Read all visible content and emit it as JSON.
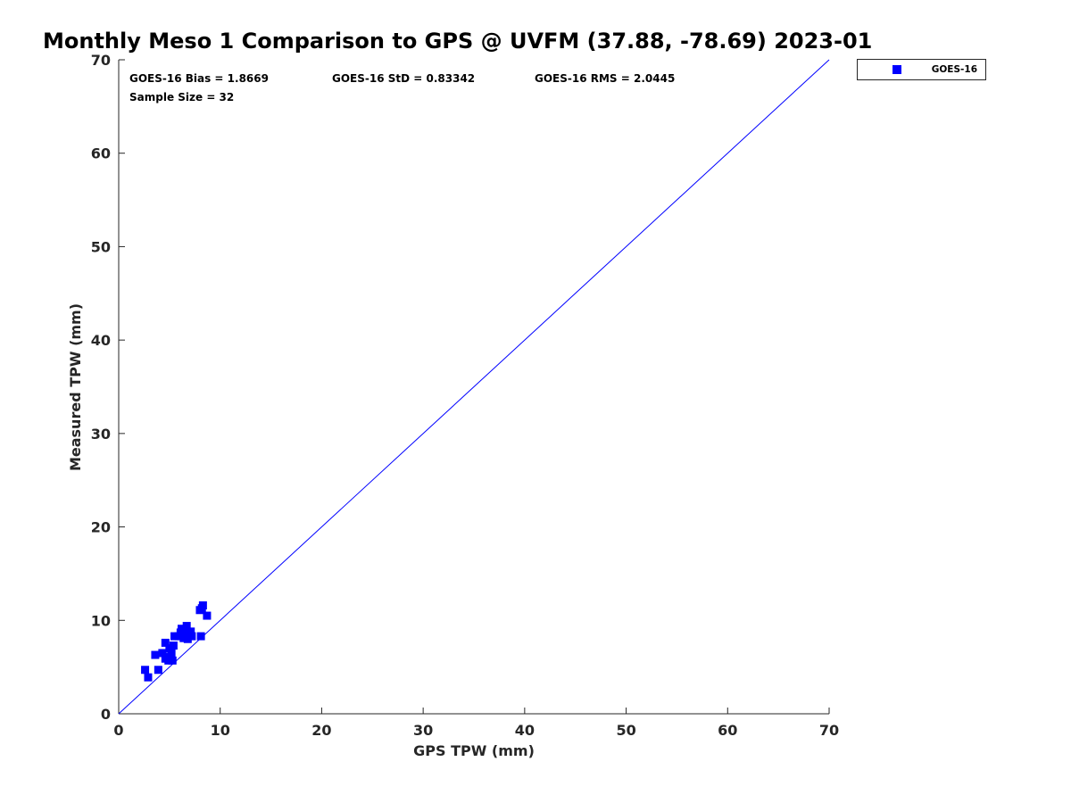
{
  "chart_data": {
    "type": "scatter",
    "title": "Monthly Meso 1 Comparison to GPS @ UVFM (37.88, -78.69) 2023-01",
    "xlabel": "GPS TPW (mm)",
    "ylabel": "Measured TPW (mm)",
    "xlim": [
      0,
      70
    ],
    "ylim": [
      0,
      70
    ],
    "xticks": [
      "0",
      "10",
      "20",
      "30",
      "40",
      "50",
      "60",
      "70"
    ],
    "yticks": [
      "0",
      "10",
      "20",
      "30",
      "40",
      "50",
      "60",
      "70"
    ],
    "grid": false,
    "legend_position": "outside-top-right",
    "reference_line": {
      "type": "one-to-one",
      "color": "#0000ff"
    },
    "stats": {
      "bias": "GOES-16 Bias = 1.8669",
      "std": "GOES-16 StD = 0.83342",
      "rms": "GOES-16 RMS = 2.0445",
      "sample": "Sample Size = 32"
    },
    "series": [
      {
        "name": "GOES-16",
        "color": "#0000ff",
        "marker": "square",
        "points": [
          [
            2.6,
            4.7
          ],
          [
            2.9,
            3.9
          ],
          [
            3.6,
            6.3
          ],
          [
            3.9,
            4.7
          ],
          [
            4.3,
            6.5
          ],
          [
            4.6,
            5.9
          ],
          [
            4.6,
            7.6
          ],
          [
            4.7,
            6.1
          ],
          [
            4.9,
            5.7
          ],
          [
            5.0,
            7.0
          ],
          [
            5.2,
            6.5
          ],
          [
            5.3,
            5.7
          ],
          [
            5.4,
            7.3
          ],
          [
            5.5,
            8.3
          ],
          [
            5.9,
            8.3
          ],
          [
            6.1,
            8.7
          ],
          [
            6.2,
            9.1
          ],
          [
            6.3,
            8.4
          ],
          [
            6.4,
            8.1
          ],
          [
            6.5,
            8.9
          ],
          [
            6.6,
            8.4
          ],
          [
            6.7,
            9.4
          ],
          [
            6.8,
            8.0
          ],
          [
            6.9,
            8.6
          ],
          [
            7.0,
            8.5
          ],
          [
            7.1,
            8.8
          ],
          [
            7.2,
            8.3
          ],
          [
            8.0,
            11.1
          ],
          [
            8.1,
            8.3
          ],
          [
            8.2,
            11.3
          ],
          [
            8.3,
            11.6
          ],
          [
            8.7,
            10.5
          ]
        ]
      }
    ]
  }
}
